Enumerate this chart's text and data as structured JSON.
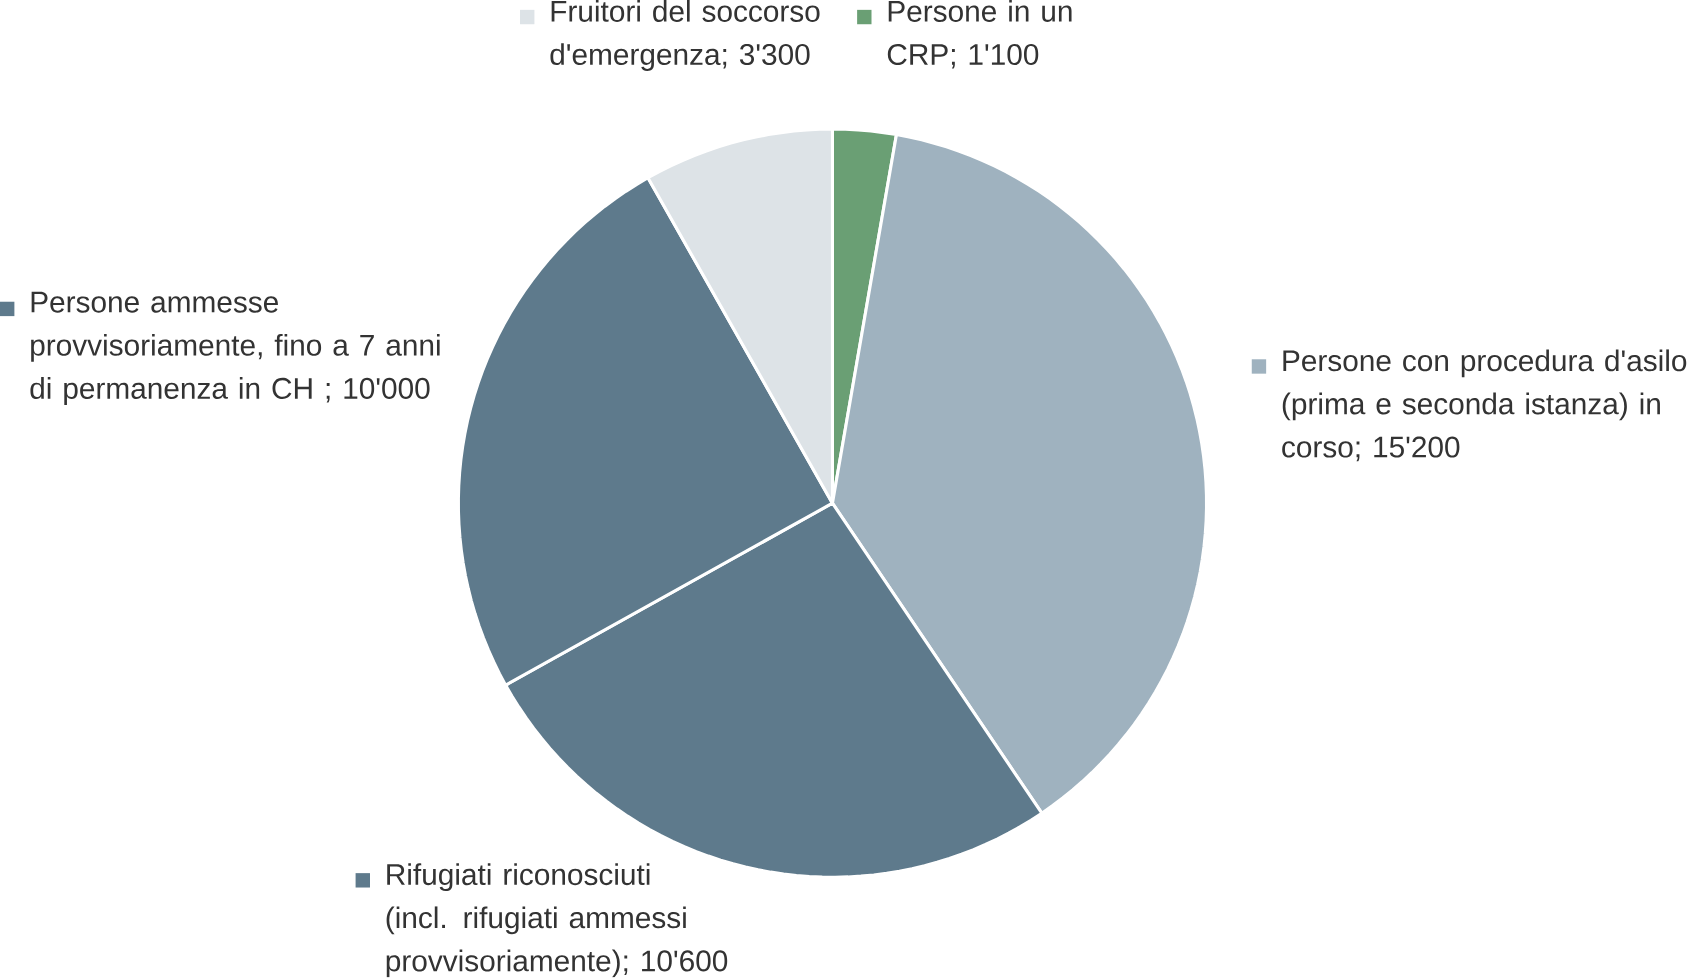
{
  "chart_data": {
    "type": "pie",
    "categories": [
      "Persone in un CRP; 1'100",
      "Persone con procedura d'asilo (prima e seconda istanza) in corso; 15'200",
      "Rifugiati riconosciuti (incl. rifugiati ammessi provvisoriamente); 10'600",
      "Persone ammesse provvisoriamente, fino a 7 anni di permanenza in CH ; 10'000",
      "Fruitori del soccorso d'emergenza; 3'300"
    ],
    "values": [
      1100,
      15200,
      10600,
      10000,
      3300
    ],
    "colors": [
      "#6a9f74",
      "#9fb2bf",
      "#5e7a8c",
      "#5e7a8c",
      "#dde3e7"
    ],
    "legend": true
  }
}
